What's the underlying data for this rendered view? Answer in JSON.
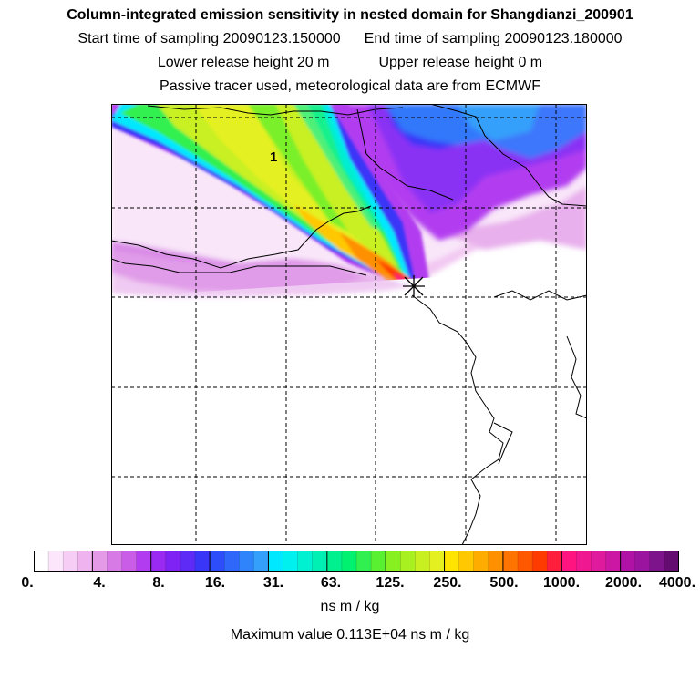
{
  "header": {
    "title": "Column-integrated emission sensitivity in nested domain for Shangdianzi_200901",
    "start_label": "Start time of sampling 20090123.150000",
    "end_label": "End time of sampling 20090123.180000",
    "lower_label": "Lower release height   20 m",
    "upper_label": "Upper release height    0 m",
    "note": "Passive tracer used, meteorological data are from ECMWF"
  },
  "map": {
    "contour_label": "1",
    "station_marker": "x-star-icon"
  },
  "colorbar": {
    "units": "ns m / kg",
    "labels": [
      "0.",
      "4.",
      "8.",
      "16.",
      "31.",
      "63.",
      "125.",
      "250.",
      "500.",
      "1000.",
      "2000.",
      "4000."
    ],
    "colors": [
      "#ffffff",
      "#fbe6fb",
      "#f5cdf5",
      "#efb3ef",
      "#e59ae8",
      "#d87ae6",
      "#c95de8",
      "#b23cf0",
      "#9a2af2",
      "#7f22f4",
      "#5d2af6",
      "#3a36f8",
      "#2d4cfa",
      "#2f67fb",
      "#2f84fb",
      "#34a0fb",
      "#00e8ff",
      "#00f0f0",
      "#00f0d2",
      "#00f0b4",
      "#00f090",
      "#00f070",
      "#30f050",
      "#58f030",
      "#86f020",
      "#a8f020",
      "#c8f020",
      "#e4f020",
      "#ffe400",
      "#ffc800",
      "#ffac00",
      "#ff9000",
      "#ff7400",
      "#ff5800",
      "#ff3c00",
      "#ff1e3c",
      "#ff1480",
      "#f01890",
      "#e01a9c",
      "#cc16a4",
      "#b012a6",
      "#9a14a0",
      "#7e148c",
      "#640c70"
    ]
  },
  "footer": {
    "max_label": "Maximum value  0.113E+04 ns m / kg"
  }
}
